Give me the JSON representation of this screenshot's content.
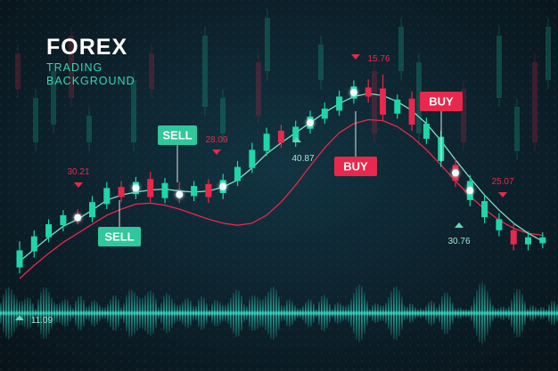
{
  "header": {
    "title": "FOREX",
    "subtitle_line1": "TRADING",
    "subtitle_line2": "BACKGROUND"
  },
  "colors": {
    "background": "#0b1820",
    "bull": "#1fd6a8",
    "bear": "#e8284c",
    "label_red": "#e8284c",
    "label_green": "#2fc79b"
  },
  "chart_data": {
    "type": "candlestick",
    "title": "FOREX",
    "candles": [
      {
        "i": 0,
        "o": 2.6,
        "c": 4.3,
        "h": 5.2,
        "l": 2.0,
        "dir": "bull"
      },
      {
        "i": 1,
        "o": 4.2,
        "c": 5.7,
        "h": 6.3,
        "l": 3.6,
        "dir": "bull"
      },
      {
        "i": 2,
        "o": 5.6,
        "c": 6.9,
        "h": 7.4,
        "l": 5.1,
        "dir": "bull"
      },
      {
        "i": 3,
        "o": 6.8,
        "c": 7.8,
        "h": 8.3,
        "l": 6.2,
        "dir": "bull"
      },
      {
        "i": 4,
        "o": 7.9,
        "c": 7.2,
        "h": 8.4,
        "l": 6.9,
        "dir": "bear"
      },
      {
        "i": 5,
        "o": 7.6,
        "c": 9.1,
        "h": 9.7,
        "l": 7.1,
        "dir": "bull"
      },
      {
        "i": 6,
        "o": 8.9,
        "c": 10.5,
        "h": 11.1,
        "l": 8.4,
        "dir": "bull"
      },
      {
        "i": 7,
        "o": 10.6,
        "c": 9.6,
        "h": 11.2,
        "l": 9.1,
        "dir": "bear"
      },
      {
        "i": 8,
        "o": 9.9,
        "c": 11.1,
        "h": 11.6,
        "l": 9.4,
        "dir": "bull"
      },
      {
        "i": 9,
        "o": 11.4,
        "c": 9.6,
        "h": 12.1,
        "l": 9.1,
        "dir": "bear"
      },
      {
        "i": 10,
        "o": 9.5,
        "c": 11.0,
        "h": 11.5,
        "l": 9.0,
        "dir": "bull"
      },
      {
        "i": 11,
        "o": 10.1,
        "c": 9.6,
        "h": 11.1,
        "l": 9.0,
        "dir": "bear"
      },
      {
        "i": 12,
        "o": 9.7,
        "c": 10.7,
        "h": 11.2,
        "l": 9.2,
        "dir": "bull"
      },
      {
        "i": 13,
        "o": 10.9,
        "c": 9.6,
        "h": 11.4,
        "l": 9.0,
        "dir": "bear"
      },
      {
        "i": 14,
        "o": 10.0,
        "c": 11.3,
        "h": 11.9,
        "l": 9.4,
        "dir": "bull"
      },
      {
        "i": 15,
        "o": 11.2,
        "c": 12.6,
        "h": 13.2,
        "l": 10.7,
        "dir": "bull"
      },
      {
        "i": 16,
        "o": 12.5,
        "c": 14.3,
        "h": 15.0,
        "l": 12.0,
        "dir": "bull"
      },
      {
        "i": 17,
        "o": 14.2,
        "c": 15.9,
        "h": 16.5,
        "l": 13.7,
        "dir": "bull"
      },
      {
        "i": 18,
        "o": 16.2,
        "c": 15.0,
        "h": 16.8,
        "l": 14.5,
        "dir": "bear"
      },
      {
        "i": 19,
        "o": 15.1,
        "c": 16.6,
        "h": 17.2,
        "l": 14.6,
        "dir": "bull"
      },
      {
        "i": 20,
        "o": 16.4,
        "c": 17.6,
        "h": 18.2,
        "l": 15.9,
        "dir": "bull"
      },
      {
        "i": 21,
        "o": 17.4,
        "c": 18.4,
        "h": 19.0,
        "l": 16.9,
        "dir": "bull"
      },
      {
        "i": 22,
        "o": 18.2,
        "c": 19.6,
        "h": 20.2,
        "l": 17.7,
        "dir": "bull"
      },
      {
        "i": 23,
        "o": 19.4,
        "c": 20.6,
        "h": 21.2,
        "l": 18.9,
        "dir": "bull"
      },
      {
        "i": 24,
        "o": 20.5,
        "c": 19.6,
        "h": 21.3,
        "l": 19.0,
        "dir": "bear"
      },
      {
        "i": 25,
        "o": 20.4,
        "c": 17.8,
        "h": 21.8,
        "l": 17.2,
        "dir": "bear"
      },
      {
        "i": 26,
        "o": 17.9,
        "c": 19.3,
        "h": 19.8,
        "l": 17.4,
        "dir": "bull"
      },
      {
        "i": 27,
        "o": 19.4,
        "c": 16.8,
        "h": 20.1,
        "l": 16.2,
        "dir": "bear"
      },
      {
        "i": 28,
        "o": 16.9,
        "c": 15.4,
        "h": 17.5,
        "l": 14.9,
        "dir": "bull"
      },
      {
        "i": 29,
        "o": 15.6,
        "c": 13.2,
        "h": 16.2,
        "l": 12.6,
        "dir": "bull"
      },
      {
        "i": 30,
        "o": 12.8,
        "c": 11.2,
        "h": 13.4,
        "l": 10.6,
        "dir": "bear"
      },
      {
        "i": 31,
        "o": 11.2,
        "c": 9.3,
        "h": 11.8,
        "l": 8.7,
        "dir": "bull"
      },
      {
        "i": 32,
        "o": 9.2,
        "c": 7.6,
        "h": 9.8,
        "l": 7.0,
        "dir": "bull"
      },
      {
        "i": 33,
        "o": 7.4,
        "c": 6.3,
        "h": 8.0,
        "l": 5.7,
        "dir": "bull"
      },
      {
        "i": 34,
        "o": 6.3,
        "c": 4.9,
        "h": 6.9,
        "l": 4.3,
        "dir": "bear"
      },
      {
        "i": 35,
        "o": 4.9,
        "c": 5.6,
        "h": 6.2,
        "l": 4.3,
        "dir": "bull"
      },
      {
        "i": 36,
        "o": 5.6,
        "c": 5.0,
        "h": 6.1,
        "l": 4.5,
        "dir": "bull"
      }
    ],
    "moving_average_green": [
      3.2,
      4.4,
      5.6,
      6.7,
      7.4,
      8.3,
      9.3,
      9.8,
      10.1,
      10.3,
      10.4,
      10.2,
      10.1,
      10.2,
      10.6,
      11.3,
      12.5,
      13.9,
      15.0,
      16.0,
      17.0,
      18.0,
      18.9,
      19.6,
      19.9,
      19.7,
      19.1,
      18.2,
      16.9,
      15.2,
      13.3,
      11.5,
      9.8,
      8.3,
      7.0,
      6.0,
      5.2
    ],
    "moving_average_red": [
      1.5,
      2.8,
      4.0,
      5.1,
      6.0,
      6.9,
      7.8,
      8.4,
      8.9,
      9.0,
      8.8,
      8.4,
      7.9,
      7.4,
      7.0,
      6.8,
      7.0,
      7.8,
      9.1,
      10.8,
      12.7,
      14.5,
      16.0,
      16.9,
      17.3,
      17.2,
      16.6,
      15.6,
      14.3,
      12.8,
      11.2,
      9.7,
      8.4,
      7.3,
      6.5,
      6.0,
      5.8
    ],
    "price_labels": [
      {
        "text": "30.21",
        "color": "red",
        "arrow": "down"
      },
      {
        "text": "28.09",
        "color": "red",
        "arrow": "down"
      },
      {
        "text": "40.87",
        "color": "green",
        "arrow": "up"
      },
      {
        "text": "15.76",
        "color": "red",
        "arrow": "down"
      },
      {
        "text": "25.07",
        "color": "red",
        "arrow": "down"
      },
      {
        "text": "30.76",
        "color": "green",
        "arrow": "up"
      },
      {
        "text": "11.09",
        "color": "green",
        "arrow": "up"
      }
    ],
    "signals": [
      {
        "label": "SELL",
        "type": "sell"
      },
      {
        "label": "SELL",
        "type": "sell"
      },
      {
        "label": "BUY",
        "type": "buy"
      },
      {
        "label": "BUY",
        "type": "buy"
      }
    ],
    "grid": true,
    "volume_waveform": true
  }
}
